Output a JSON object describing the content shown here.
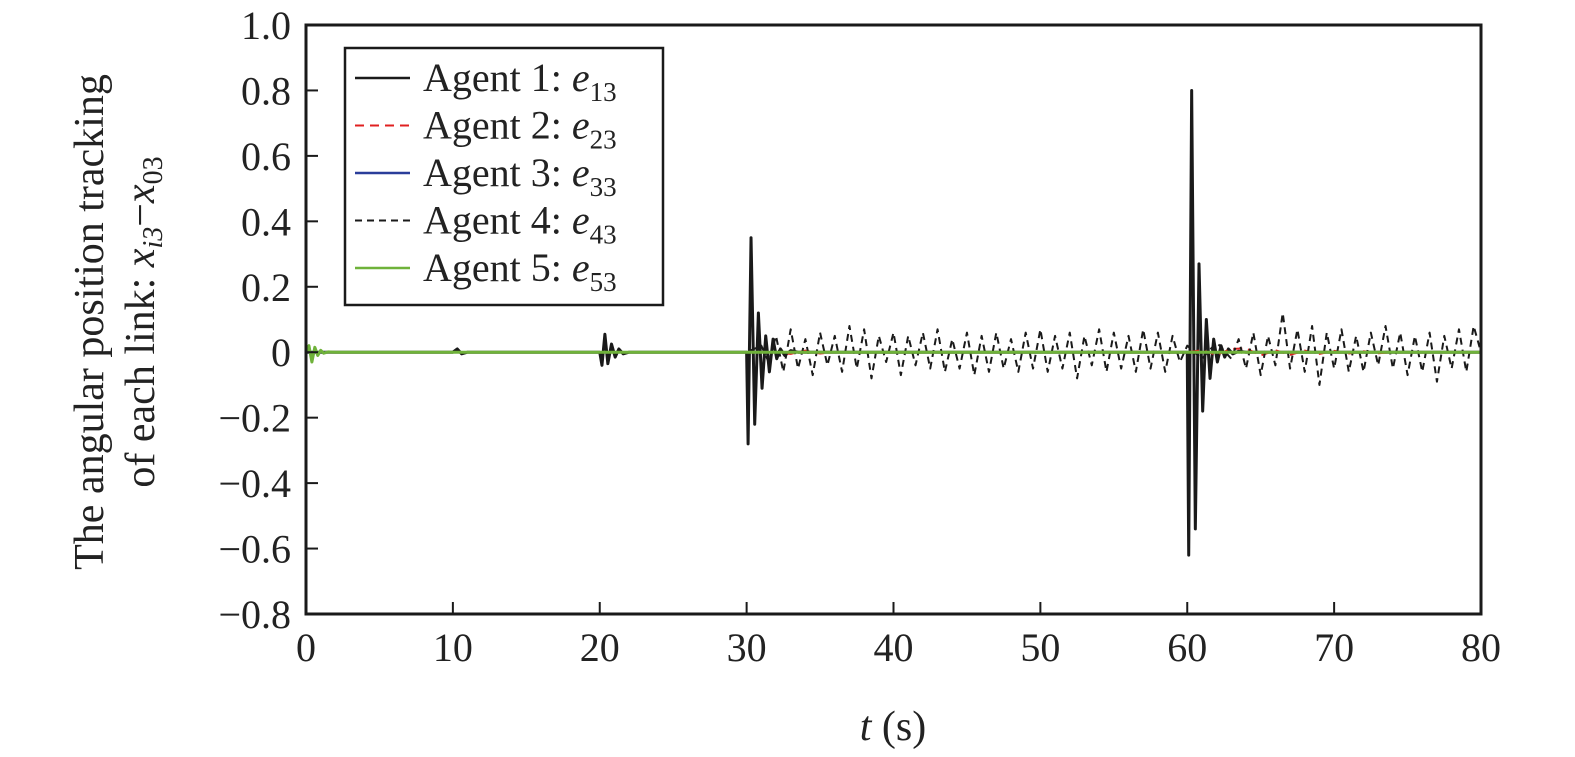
{
  "chart_data": {
    "type": "line",
    "title": "",
    "xlabel": {
      "italic": "t",
      "rest": " (s)"
    },
    "ylabel": {
      "line1": "The angular position tracking",
      "line2_prefix": "of each link: ",
      "x": "x",
      "sub_i3": "i3",
      "minus": "−",
      "sub_03": "03"
    },
    "xlim": [
      0,
      80
    ],
    "ylim": [
      -0.8,
      1.0
    ],
    "x_ticks": [
      0,
      10,
      20,
      30,
      40,
      50,
      60,
      70,
      80
    ],
    "x_tick_labels": [
      "0",
      "10",
      "20",
      "30",
      "40",
      "50",
      "60",
      "70",
      "80"
    ],
    "y_ticks": [
      1.0,
      0.8,
      0.6,
      0.4,
      0.2,
      0,
      -0.2,
      -0.4,
      -0.6,
      -0.8
    ],
    "y_tick_labels": [
      "1.0",
      "0.8",
      "0.6",
      "0.4",
      "0.2",
      "0",
      "−0.2",
      "−0.4",
      "−0.6",
      "−0.8"
    ],
    "grid": false,
    "legend_position": "top-left",
    "series": [
      {
        "name": "Agent 1: e13",
        "label_main": "Agent 1: ",
        "label_var": "e",
        "label_sub": "13",
        "color": "#1a1a1a",
        "dash": "",
        "width": 3,
        "x": [
          0,
          10.0,
          10.3,
          10.6,
          11.0,
          20.0,
          20.15,
          20.35,
          20.55,
          20.8,
          21.05,
          21.3,
          21.6,
          22.0,
          30.0,
          30.1,
          30.3,
          30.55,
          30.8,
          31.05,
          31.3,
          31.55,
          31.8,
          32.05,
          32.3,
          32.6,
          33.0,
          33.5,
          60.0,
          60.1,
          60.3,
          60.55,
          60.8,
          61.05,
          61.3,
          61.55,
          61.8,
          62.05,
          62.3,
          62.55,
          62.8,
          63.1,
          63.5,
          64.0,
          80.0
        ],
        "y": [
          0,
          0,
          0.01,
          -0.005,
          0,
          0,
          -0.04,
          0.055,
          -0.035,
          0.025,
          -0.015,
          0.01,
          -0.005,
          0,
          0,
          -0.28,
          0.35,
          -0.22,
          0.12,
          -0.11,
          0.05,
          -0.06,
          0.04,
          -0.02,
          0.01,
          -0.01,
          0.005,
          0,
          0,
          -0.62,
          0.8,
          -0.54,
          0.27,
          -0.18,
          0.1,
          -0.08,
          0.04,
          -0.03,
          0.02,
          -0.015,
          0.01,
          -0.005,
          0.003,
          0,
          0
        ]
      },
      {
        "name": "Agent 2: e23",
        "label_main": "Agent 2: ",
        "label_var": "e",
        "label_sub": "23",
        "color": "#e02020",
        "dash": "9,6",
        "width": 2,
        "x": [
          0,
          32.0,
          33.0,
          34.0,
          35.0,
          36.0,
          60.0,
          61.0,
          62.0,
          63.0,
          64.0,
          65.0,
          66.0,
          67.0,
          68.0,
          69.0,
          70.0,
          71.0,
          72.0,
          73.0,
          74.0,
          80.0
        ],
        "y": [
          0,
          0,
          -0.005,
          0.005,
          -0.004,
          0,
          0,
          0.006,
          -0.008,
          0.01,
          0.012,
          -0.01,
          0.006,
          -0.008,
          0.005,
          -0.005,
          0.004,
          -0.004,
          0.003,
          -0.003,
          0,
          0
        ]
      },
      {
        "name": "Agent 3: e33",
        "label_main": "Agent 3: ",
        "label_var": "e",
        "label_sub": "33",
        "color": "#2a3d9a",
        "dash": "",
        "width": 2.5,
        "x": [
          0,
          80.0
        ],
        "y": [
          0,
          0
        ]
      },
      {
        "name": "Agent 4: e43",
        "label_main": "Agent 4: ",
        "label_var": "e",
        "label_sub": "43",
        "color": "#1a1a1a",
        "dash": "7,5",
        "width": 2,
        "x": [
          0,
          30.0,
          31.0,
          31.5,
          32.0,
          32.5,
          33.0,
          33.5,
          34.0,
          34.5,
          35.0,
          35.5,
          36.0,
          36.5,
          37.0,
          37.5,
          38.0,
          38.5,
          39.0,
          39.5,
          40.0,
          40.5,
          41.0,
          41.5,
          42.0,
          42.5,
          43.0,
          43.5,
          44.0,
          44.5,
          45.0,
          45.5,
          46.0,
          46.5,
          47.0,
          47.5,
          48.0,
          48.5,
          49.0,
          49.5,
          50.0,
          50.5,
          51.0,
          51.5,
          52.0,
          52.5,
          53.0,
          53.5,
          54.0,
          54.5,
          55.0,
          55.5,
          56.0,
          56.5,
          57.0,
          57.5,
          58.0,
          58.5,
          59.0,
          59.5,
          60.0,
          61.0,
          62.0,
          63.0,
          63.5,
          64.0,
          64.5,
          65.0,
          65.5,
          66.0,
          66.5,
          67.0,
          67.5,
          68.0,
          68.5,
          69.0,
          69.5,
          70.0,
          70.5,
          71.0,
          71.5,
          72.0,
          72.5,
          73.0,
          73.5,
          74.0,
          74.5,
          75.0,
          75.5,
          76.0,
          76.5,
          77.0,
          77.5,
          78.0,
          78.5,
          79.0,
          79.5,
          80.0
        ],
        "y": [
          0,
          0,
          0.02,
          -0.03,
          0.05,
          -0.06,
          0.07,
          -0.05,
          0.04,
          -0.07,
          0.06,
          -0.04,
          0.05,
          -0.06,
          0.08,
          -0.05,
          0.07,
          -0.08,
          0.05,
          -0.03,
          0.06,
          -0.07,
          0.05,
          -0.04,
          0.06,
          -0.05,
          0.07,
          -0.06,
          0.04,
          -0.05,
          0.06,
          -0.07,
          0.05,
          -0.06,
          0.06,
          -0.05,
          0.04,
          -0.06,
          0.06,
          -0.05,
          0.07,
          -0.06,
          0.05,
          -0.05,
          0.06,
          -0.08,
          0.05,
          -0.04,
          0.07,
          -0.06,
          0.06,
          -0.05,
          0.05,
          -0.06,
          0.07,
          -0.05,
          0.06,
          -0.06,
          0.05,
          -0.03,
          0.02,
          -0.02,
          0.03,
          -0.02,
          0.04,
          -0.05,
          0.06,
          -0.07,
          0.05,
          -0.04,
          0.12,
          -0.05,
          0.07,
          -0.06,
          0.08,
          -0.1,
          0.06,
          -0.05,
          0.07,
          -0.06,
          0.05,
          -0.06,
          0.06,
          -0.04,
          0.08,
          -0.05,
          0.06,
          -0.07,
          0.05,
          -0.06,
          0.06,
          -0.09,
          0.05,
          -0.05,
          0.07,
          -0.06,
          0.08,
          0
        ]
      },
      {
        "name": "Agent 5: e53",
        "label_main": "Agent 5: ",
        "label_var": "e",
        "label_sub": "53",
        "color": "#6fb23a",
        "dash": "",
        "width": 3,
        "x": [
          0,
          0.2,
          0.4,
          0.6,
          0.8,
          1.0,
          1.2,
          1.5,
          2.0,
          80.0
        ],
        "y": [
          0,
          0.02,
          -0.03,
          0.015,
          -0.01,
          0.006,
          -0.003,
          0.001,
          0,
          0
        ]
      }
    ]
  }
}
